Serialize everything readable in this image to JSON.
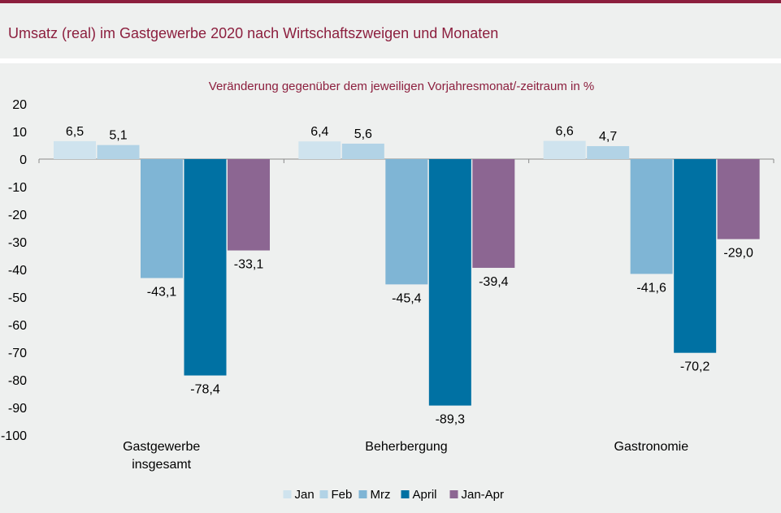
{
  "header": {
    "title": "Umsatz (real) im Gastgewerbe 2020 nach Wirtschaftszweigen und Monaten"
  },
  "colors": {
    "brand": "#8c1f3e",
    "background": "#eef0ef"
  },
  "chart_data": {
    "type": "bar",
    "subtitle": "Veränderung  gegenüber  dem jeweiligen Vorjahresmonat/-zeitraum  in %",
    "categories": [
      "Gastgewerbe insgesamt",
      "Beherbergung",
      "Gastronomie"
    ],
    "series": [
      {
        "name": "Jan",
        "values": [
          6.5,
          6.4,
          6.6
        ],
        "color": "#cfe3ee"
      },
      {
        "name": "Feb",
        "values": [
          5.1,
          5.6,
          4.7
        ],
        "color": "#b2d3e6"
      },
      {
        "name": "Mrz",
        "values": [
          -43.1,
          -45.4,
          -41.6
        ],
        "color": "#7fb5d5"
      },
      {
        "name": "April",
        "values": [
          -78.4,
          -89.3,
          -70.2
        ],
        "color": "#0071a3"
      },
      {
        "name": "Jan-Apr",
        "values": [
          -33.1,
          -39.4,
          -29.0
        ],
        "color": "#8c6692"
      }
    ],
    "value_labels": [
      [
        "6,5",
        "5,1",
        "-43,1",
        "-78,4",
        "-33,1"
      ],
      [
        "6,4",
        "5,6",
        "-45,4",
        "-89,3",
        "-39,4"
      ],
      [
        "6,6",
        "4,7",
        "-41,6",
        "-70,2",
        "-29,0"
      ]
    ],
    "ylim": [
      -100,
      20
    ],
    "yticks": [
      "20",
      "10",
      "0",
      "-10",
      "-20",
      "-30",
      "-40",
      "-50",
      "-60",
      "-70",
      "-80",
      "-90",
      "-100"
    ],
    "grid": false,
    "legend_position": "bottom"
  }
}
